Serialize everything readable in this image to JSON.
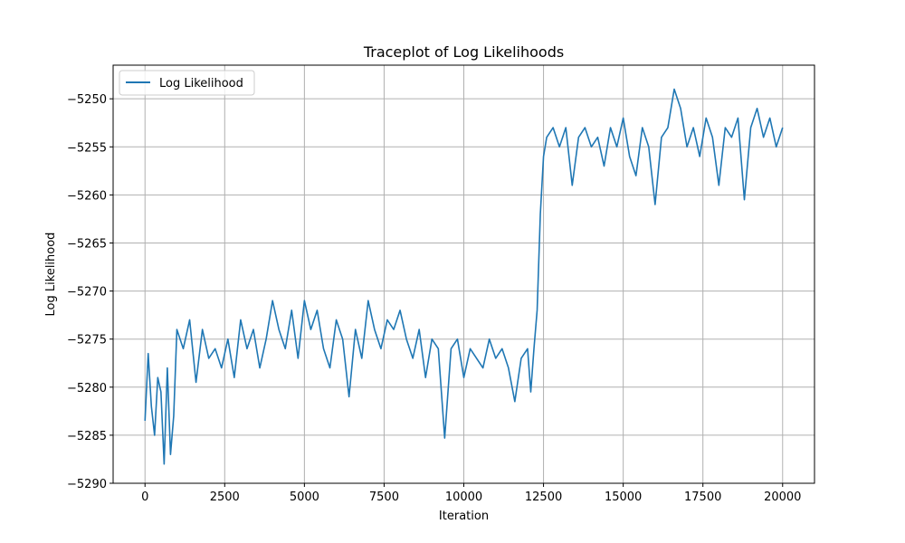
{
  "chart_data": {
    "type": "line",
    "title": "Traceplot of Log Likelihoods",
    "xlabel": "Iteration",
    "ylabel": "Log Likelihood",
    "xlim": [
      -1000,
      21000
    ],
    "ylim": [
      -5290,
      -5246.5
    ],
    "xticks": [
      0,
      2500,
      5000,
      7500,
      10000,
      12500,
      15000,
      17500,
      20000
    ],
    "yticks": [
      -5290,
      -5285,
      -5280,
      -5275,
      -5270,
      -5265,
      -5260,
      -5255,
      -5250
    ],
    "grid": true,
    "legend": {
      "placement": "upper-left",
      "entries": [
        "Log Likelihood"
      ]
    },
    "colors": {
      "series": "#1f77b4"
    },
    "series": [
      {
        "name": "Log Likelihood",
        "x": [
          0,
          100,
          200,
          300,
          400,
          500,
          600,
          700,
          800,
          900,
          1000,
          1200,
          1400,
          1600,
          1800,
          2000,
          2200,
          2400,
          2600,
          2800,
          3000,
          3200,
          3400,
          3600,
          3800,
          4000,
          4200,
          4400,
          4600,
          4800,
          5000,
          5200,
          5400,
          5600,
          5800,
          6000,
          6200,
          6400,
          6600,
          6800,
          7000,
          7200,
          7400,
          7600,
          7800,
          8000,
          8200,
          8400,
          8600,
          8800,
          9000,
          9200,
          9400,
          9600,
          9800,
          10000,
          10200,
          10400,
          10600,
          10800,
          11000,
          11200,
          11400,
          11600,
          11800,
          12000,
          12100,
          12200,
          12300,
          12400,
          12500,
          12600,
          12800,
          13000,
          13200,
          13400,
          13600,
          13800,
          14000,
          14200,
          14400,
          14600,
          14800,
          15000,
          15200,
          15400,
          15600,
          15800,
          16000,
          16200,
          16400,
          16600,
          16800,
          17000,
          17200,
          17400,
          17600,
          17800,
          18000,
          18200,
          18400,
          18600,
          18800,
          19000,
          19200,
          19400,
          19600,
          19800,
          20000
        ],
        "y": [
          -5283.5,
          -5276.5,
          -5282,
          -5285,
          -5279,
          -5280.5,
          -5288,
          -5278,
          -5287,
          -5283,
          -5274,
          -5276,
          -5273,
          -5279.5,
          -5274,
          -5277,
          -5276,
          -5278,
          -5275,
          -5279,
          -5273,
          -5276,
          -5274,
          -5278,
          -5275,
          -5271,
          -5274,
          -5276,
          -5272,
          -5277,
          -5271,
          -5274,
          -5272,
          -5276,
          -5278,
          -5273,
          -5275,
          -5281,
          -5274,
          -5277,
          -5271,
          -5274,
          -5276,
          -5273,
          -5274,
          -5272,
          -5275,
          -5277,
          -5274,
          -5279,
          -5275,
          -5276,
          -5285.3,
          -5276,
          -5275,
          -5279,
          -5276,
          -5277,
          -5278,
          -5275,
          -5277,
          -5276,
          -5278,
          -5281.5,
          -5277,
          -5276,
          -5280.5,
          -5276,
          -5272,
          -5262,
          -5256,
          -5254,
          -5253,
          -5255,
          -5253,
          -5259,
          -5254,
          -5253,
          -5255,
          -5254,
          -5257,
          -5253,
          -5255,
          -5252,
          -5256,
          -5258,
          -5253,
          -5255,
          -5261,
          -5254,
          -5253,
          -5249,
          -5251,
          -5255,
          -5253,
          -5256,
          -5252,
          -5254,
          -5259,
          -5253,
          -5254,
          -5252,
          -5260.5,
          -5253,
          -5251,
          -5254,
          -5252,
          -5255,
          -5253
        ]
      }
    ]
  }
}
